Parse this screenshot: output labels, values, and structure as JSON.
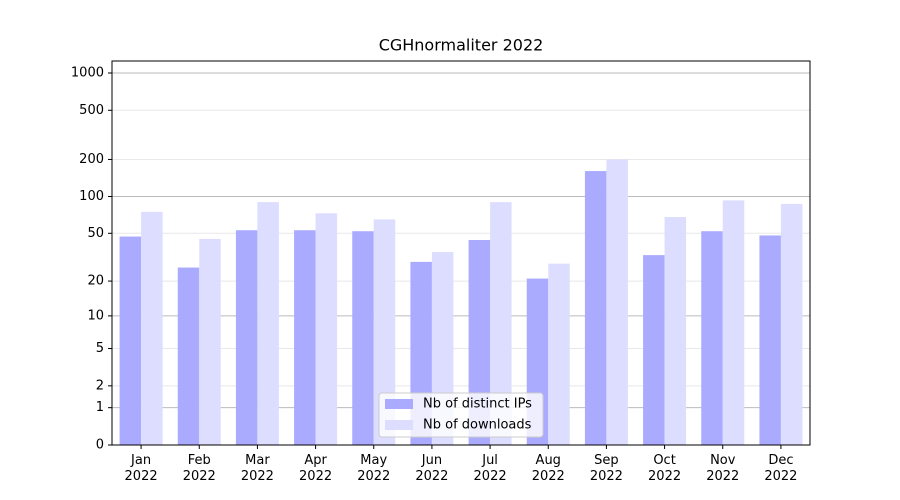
{
  "chart_data": {
    "type": "bar",
    "title": "CGHnormaliter 2022",
    "categories": [
      "Jan\n2022",
      "Feb\n2022",
      "Mar\n2022",
      "Apr\n2022",
      "May\n2022",
      "Jun\n2022",
      "Jul\n2022",
      "Aug\n2022",
      "Sep\n2022",
      "Oct\n2022",
      "Nov\n2022",
      "Dec\n2022"
    ],
    "series": [
      {
        "name": "Nb of distinct IPs",
        "color": "#aaaaff",
        "values": [
          47,
          26,
          53,
          53,
          52,
          29,
          44,
          21,
          161,
          33,
          52,
          48
        ]
      },
      {
        "name": "Nb of downloads",
        "color": "#ddddff",
        "values": [
          75,
          45,
          90,
          73,
          65,
          35,
          90,
          28,
          200,
          68,
          93,
          87
        ]
      }
    ],
    "yscale": "symlog",
    "ylim": [
      0,
      1250
    ],
    "yticks": [
      0,
      1,
      2,
      5,
      10,
      20,
      50,
      100,
      200,
      500,
      1000
    ],
    "grid": true,
    "legend": "lower center"
  }
}
